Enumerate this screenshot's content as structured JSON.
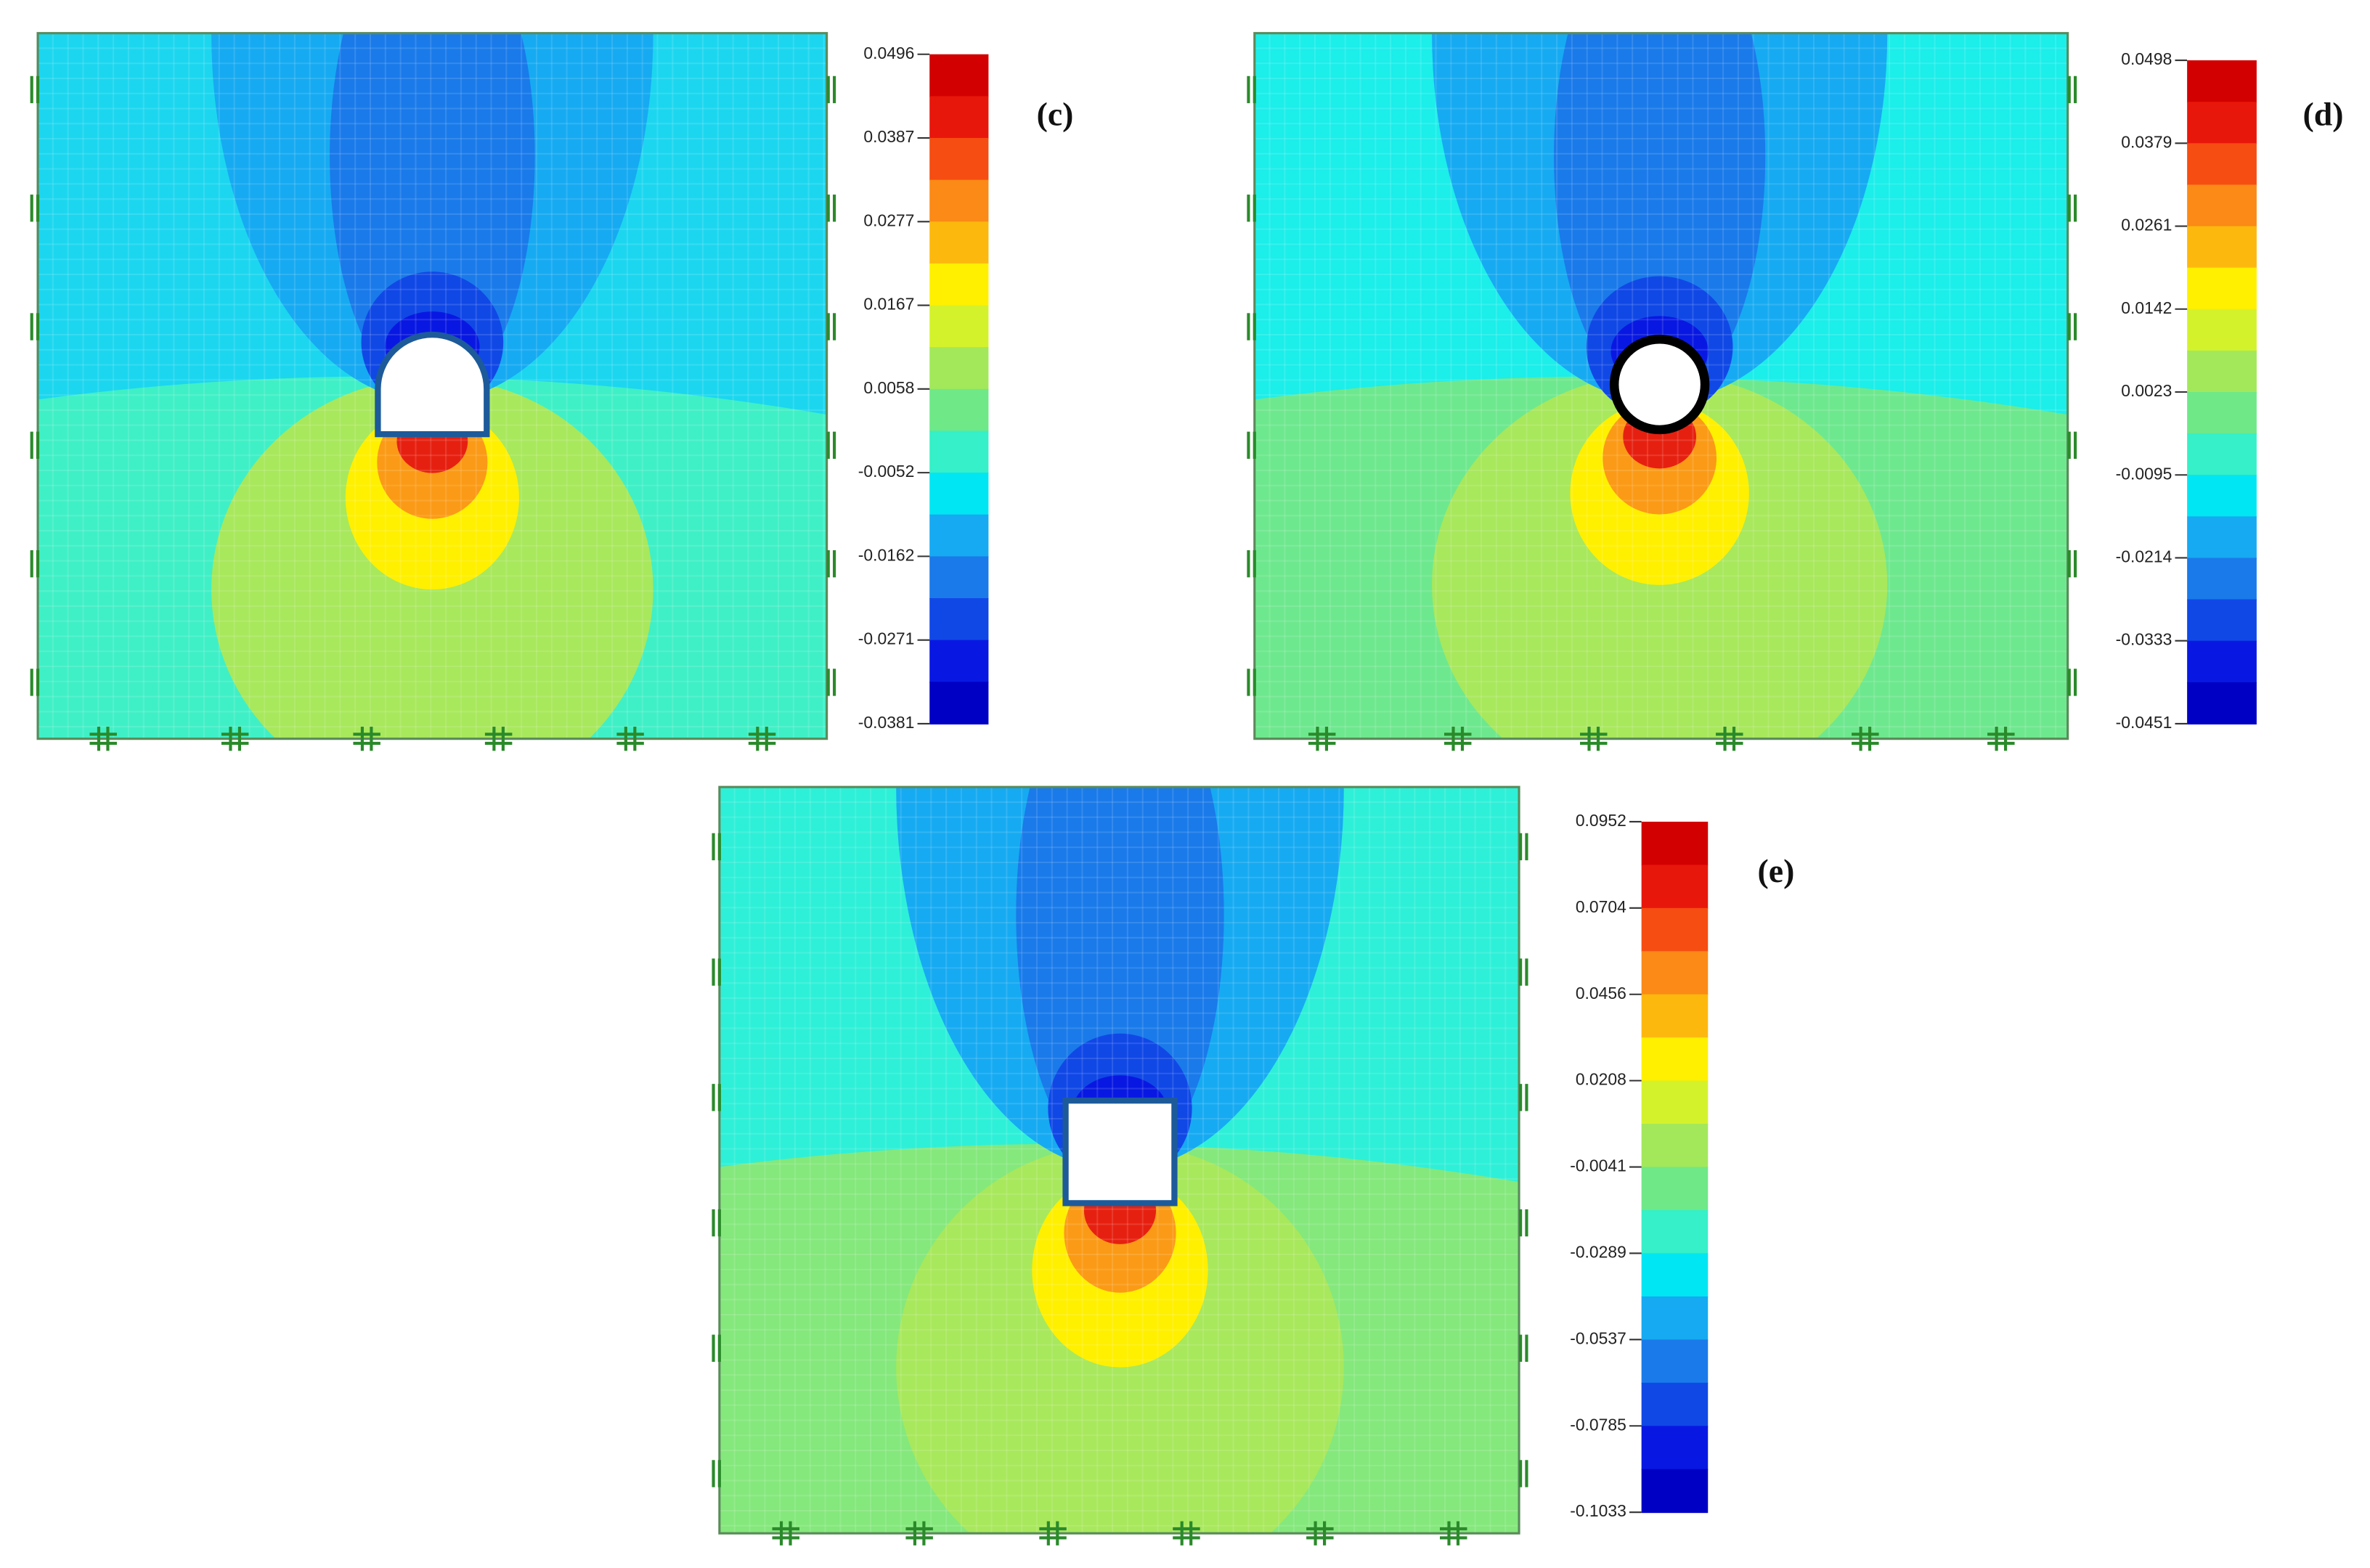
{
  "panels": [
    {
      "label": "(c)",
      "colorbar_ticks": [
        0.0496,
        0.0387,
        0.0277,
        0.0167,
        0.0058,
        -0.0052,
        -0.0162,
        -0.0271,
        -0.0381
      ]
    },
    {
      "label": "(d)",
      "colorbar_ticks": [
        0.0498,
        0.0379,
        0.0261,
        0.0142,
        0.0023,
        -0.0095,
        -0.0214,
        -0.0333,
        -0.0451
      ]
    },
    {
      "label": "(e)",
      "colorbar_ticks": [
        0.0952,
        0.0704,
        0.0456,
        0.0208,
        -0.0041,
        -0.0289,
        -0.0537,
        -0.0785,
        -0.1033
      ]
    }
  ]
}
